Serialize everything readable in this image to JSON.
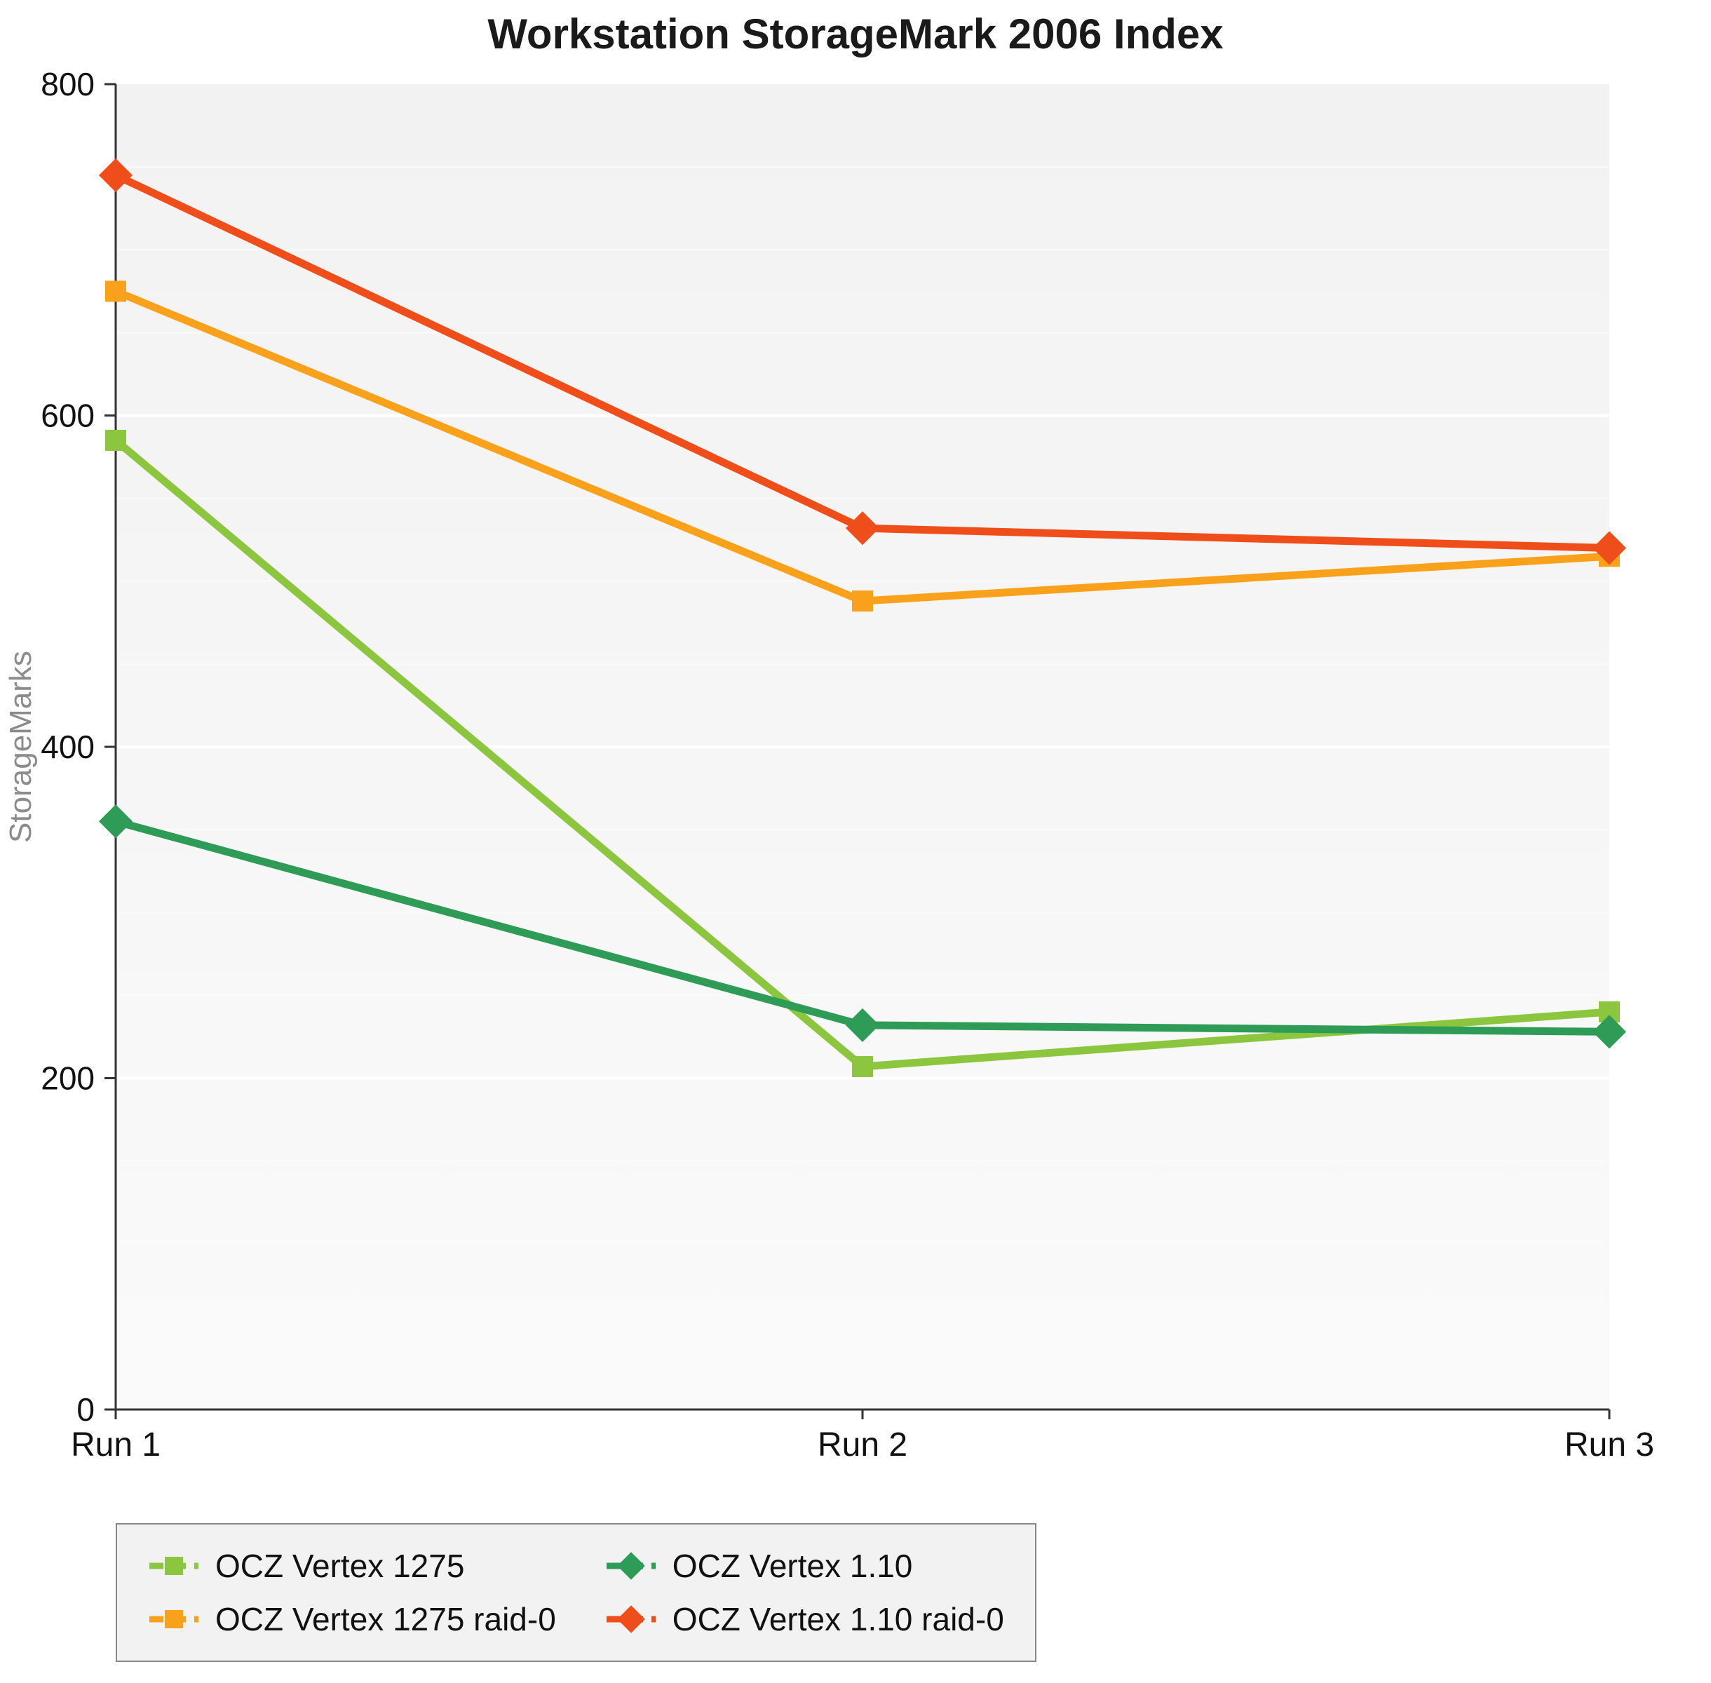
{
  "chart_data": {
    "type": "line",
    "title": "Workstation StorageMark 2006 Index",
    "ylabel": "StorageMarks",
    "xlabel": "",
    "categories": [
      "Run 1",
      "Run 2",
      "Run 3"
    ],
    "ylim": [
      0,
      800
    ],
    "y_ticks": [
      0,
      200,
      400,
      600,
      800
    ],
    "grid": "horizontal-major",
    "legend_position": "bottom-left",
    "series": [
      {
        "name": "OCZ Vertex 1275",
        "values": [
          585,
          207,
          240
        ],
        "color": "#8CC63E",
        "marker": "square"
      },
      {
        "name": "OCZ Vertex 1275 raid-0",
        "values": [
          675,
          488,
          515
        ],
        "color": "#F9A11B",
        "marker": "square"
      },
      {
        "name": "OCZ Vertex 1.10",
        "values": [
          355,
          232,
          228
        ],
        "color": "#2E9B57",
        "marker": "diamond"
      },
      {
        "name": "OCZ Vertex 1.10 raid-0",
        "values": [
          745,
          532,
          520
        ],
        "color": "#EF4E1A",
        "marker": "diamond"
      }
    ]
  },
  "colors": {
    "plot_bg_top": "#f2f2f2",
    "plot_bg_bottom": "#fafafa",
    "grid_major": "#ffffff",
    "grid_minor": "#fafafa",
    "axis": "#333333",
    "tick_label": "#111111",
    "axis_title": "#8c8c8c",
    "legend_bg": "#f2f2f2",
    "legend_border": "#888888",
    "title": "#1a1a1a"
  }
}
